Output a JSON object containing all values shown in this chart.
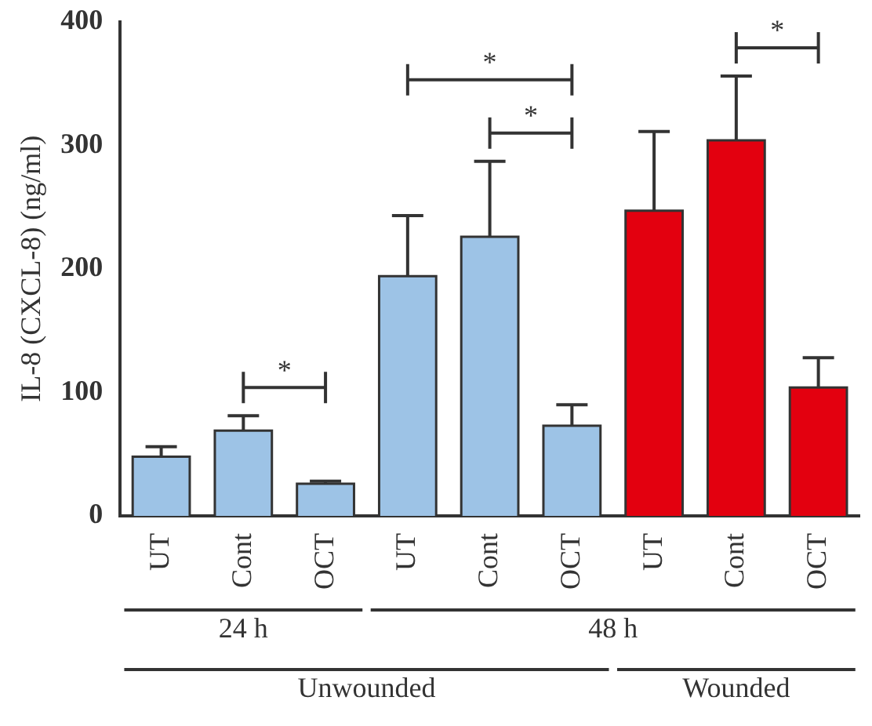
{
  "chart_data": {
    "type": "bar",
    "ylabel": "IL-8 (CXCL-8) (ng/ml)",
    "categories": [
      "UT",
      "Cont",
      "OCT",
      "UT",
      "Cont",
      "OCT",
      "UT",
      "Cont",
      "OCT"
    ],
    "values": [
      47,
      68,
      25,
      193,
      225,
      72,
      246,
      303,
      103
    ],
    "errors": [
      9,
      13,
      3,
      50,
      62,
      18,
      65,
      53,
      25
    ],
    "colors": [
      "#9dc3e6",
      "#9dc3e6",
      "#9dc3e6",
      "#9dc3e6",
      "#9dc3e6",
      "#9dc3e6",
      "#e3000f",
      "#e3000f",
      "#e3000f"
    ],
    "ylim": [
      0,
      400
    ],
    "yticks": [
      0,
      100,
      200,
      300,
      400
    ],
    "grid": false,
    "legend": false,
    "annotations": [
      "24 h",
      "48 h",
      "Unwounded",
      "Wounded",
      "*",
      "*",
      "*",
      "*"
    ]
  }
}
